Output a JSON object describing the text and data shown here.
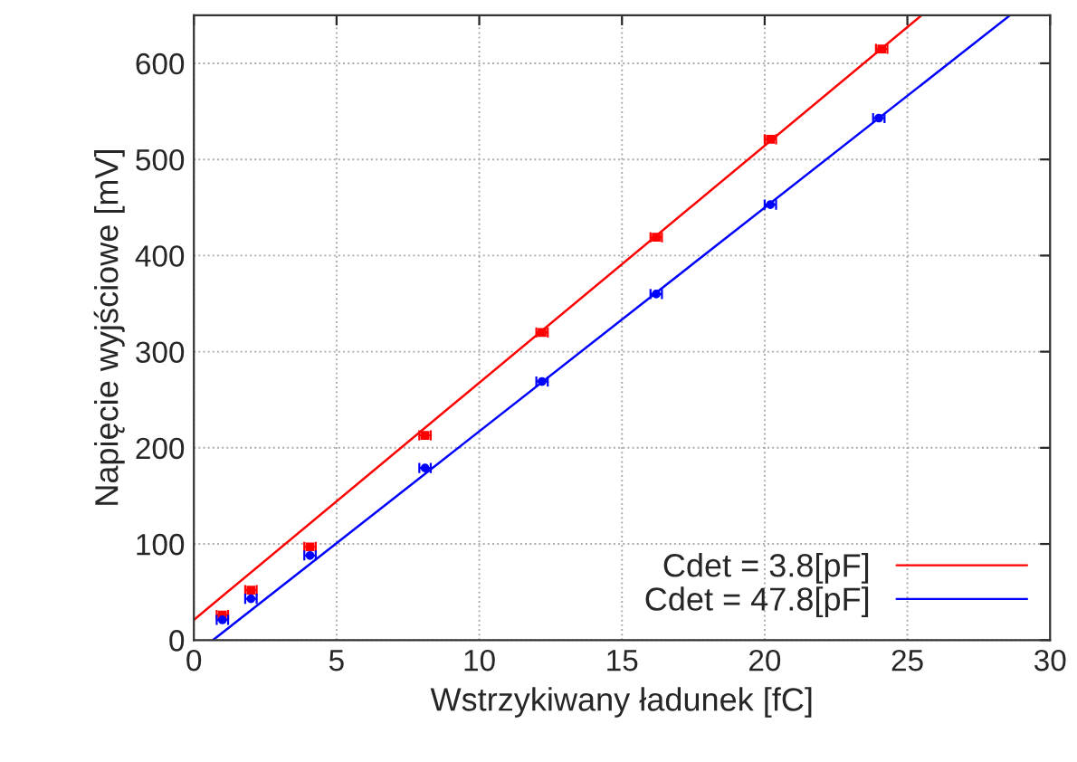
{
  "chart_data": {
    "type": "scatter",
    "xlabel": "Wstrzykiwany ładunek [fC]",
    "ylabel": "Napięcie wyjściowe [mV]",
    "xlim": [
      0,
      30
    ],
    "ylim": [
      0,
      650
    ],
    "xticks": [
      0,
      5,
      10,
      15,
      20,
      25,
      30
    ],
    "yticks": [
      0,
      100,
      200,
      300,
      400,
      500,
      600
    ],
    "grid": true,
    "legend": "bottom right",
    "series": [
      {
        "name": "Cdet = 3.8[pF]",
        "color": "#ff0000",
        "marker": "square",
        "x": [
          1.0,
          2.0,
          4.07,
          8.1,
          12.2,
          16.2,
          20.2,
          24.1
        ],
        "values": [
          26,
          52,
          97,
          213,
          320,
          419,
          521,
          615
        ],
        "xerrors": [
          0.2,
          0.2,
          0.2,
          0.2,
          0.2,
          0.2,
          0.2,
          0.2
        ]
      },
      {
        "name": "Cdet = 47.8[pF]",
        "color": "#0000ff",
        "marker": "circle",
        "x": [
          1.0,
          2.0,
          4.07,
          8.1,
          12.2,
          16.2,
          20.2,
          24.0
        ],
        "values": [
          21,
          43,
          88,
          179,
          269,
          360,
          453,
          543
        ],
        "xerrors": [
          0.2,
          0.2,
          0.2,
          0.2,
          0.2,
          0.2,
          0.2,
          0.2
        ]
      },
      {
        "type": "line",
        "color": "#ff0000",
        "x": [
          0,
          25.5
        ],
        "values": [
          21,
          650
        ]
      },
      {
        "type": "line",
        "color": "#0000ff",
        "x": [
          0.67,
          28.6
        ],
        "values": [
          0,
          650
        ]
      }
    ]
  }
}
